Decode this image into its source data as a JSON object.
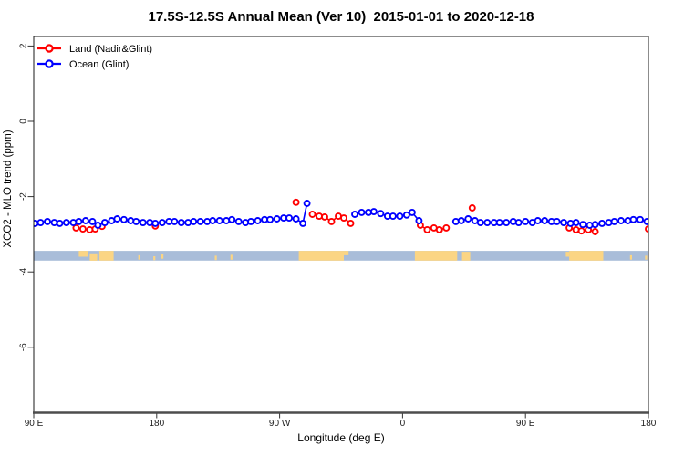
{
  "title": "17.5S-12.5S Annual Mean (Ver 10)  2015-01-01 to 2020-12-18",
  "legend": {
    "items": [
      {
        "label": "Land (Nadir&Glint)",
        "color": "#FF0000",
        "marker": "open-circle-line"
      },
      {
        "label": "Ocean (Glint)",
        "color": "#0000FF",
        "marker": "open-circle-line"
      }
    ]
  },
  "chart_data": {
    "type": "line",
    "title": "17.5S-12.5S Annual Mean (Ver 10)  2015-01-01 to 2020-12-18",
    "xlabel": "Longitude (deg E)",
    "ylabel": "XCO2 - MLO trend (ppm)",
    "x_axis": {
      "range_plot_deg": [
        90,
        540
      ],
      "note": "longitude axis wraps: 90E to 180 to 90W to 0 to 90E to 180",
      "ticks": [
        {
          "value": 90,
          "label": "90 E"
        },
        {
          "value": 180,
          "label": "180"
        },
        {
          "value": 270,
          "label": "90 W"
        },
        {
          "value": 360,
          "label": "0"
        },
        {
          "value": 450,
          "label": "90 E"
        },
        {
          "value": 540,
          "label": "180"
        }
      ]
    },
    "y_axis": {
      "range": [
        -7.7,
        2.3
      ],
      "grid": false,
      "ticks": [
        {
          "value": 2,
          "label": "2"
        },
        {
          "value": 0,
          "label": "0"
        },
        {
          "value": -2,
          "label": "-2"
        },
        {
          "value": -4,
          "label": "-4"
        },
        {
          "value": -6,
          "label": "-6"
        }
      ]
    },
    "line_gap_max_deg": 8,
    "series": [
      {
        "key": "land",
        "name": "Land (Nadir&Glint)",
        "color": "#FF0000",
        "marker": "open-circle",
        "points": [
          [
            121,
            -2.83
          ],
          [
            126,
            -2.86
          ],
          [
            131,
            -2.88
          ],
          [
            135,
            -2.86
          ],
          [
            140,
            -2.79
          ],
          [
            179,
            -2.78
          ],
          [
            282,
            -2.15
          ],
          [
            294,
            -2.47
          ],
          [
            299,
            -2.52
          ],
          [
            303,
            -2.54
          ],
          [
            308,
            -2.66
          ],
          [
            313,
            -2.52
          ],
          [
            317,
            -2.57
          ],
          [
            322,
            -2.71
          ],
          [
            373,
            -2.76
          ],
          [
            378,
            -2.88
          ],
          [
            383,
            -2.83
          ],
          [
            387,
            -2.88
          ],
          [
            392,
            -2.83
          ],
          [
            411,
            -2.3
          ],
          [
            482,
            -2.83
          ],
          [
            487,
            -2.88
          ],
          [
            491,
            -2.91
          ],
          [
            496,
            -2.88
          ],
          [
            501,
            -2.93
          ],
          [
            540,
            -2.86
          ]
        ]
      },
      {
        "key": "ocean",
        "name": "Ocean (Glint)",
        "color": "#0000FF",
        "marker": "open-circle",
        "points": [
          [
            91,
            -2.71
          ],
          [
            95,
            -2.69
          ],
          [
            100,
            -2.66
          ],
          [
            105,
            -2.69
          ],
          [
            109,
            -2.71
          ],
          [
            114,
            -2.69
          ],
          [
            119,
            -2.69
          ],
          [
            123,
            -2.66
          ],
          [
            128,
            -2.64
          ],
          [
            133,
            -2.66
          ],
          [
            137,
            -2.76
          ],
          [
            142,
            -2.69
          ],
          [
            147,
            -2.64
          ],
          [
            151,
            -2.59
          ],
          [
            156,
            -2.61
          ],
          [
            161,
            -2.64
          ],
          [
            165,
            -2.66
          ],
          [
            170,
            -2.69
          ],
          [
            175,
            -2.69
          ],
          [
            179,
            -2.71
          ],
          [
            184,
            -2.69
          ],
          [
            189,
            -2.66
          ],
          [
            193,
            -2.66
          ],
          [
            198,
            -2.69
          ],
          [
            203,
            -2.69
          ],
          [
            207,
            -2.66
          ],
          [
            212,
            -2.66
          ],
          [
            217,
            -2.66
          ],
          [
            221,
            -2.64
          ],
          [
            226,
            -2.64
          ],
          [
            231,
            -2.64
          ],
          [
            235,
            -2.61
          ],
          [
            240,
            -2.66
          ],
          [
            245,
            -2.69
          ],
          [
            249,
            -2.66
          ],
          [
            254,
            -2.64
          ],
          [
            259,
            -2.61
          ],
          [
            263,
            -2.61
          ],
          [
            268,
            -2.59
          ],
          [
            273,
            -2.57
          ],
          [
            277,
            -2.57
          ],
          [
            282,
            -2.59
          ],
          [
            287,
            -2.71
          ],
          [
            290,
            -2.18
          ],
          [
            325,
            -2.47
          ],
          [
            330,
            -2.42
          ],
          [
            335,
            -2.42
          ],
          [
            339,
            -2.4
          ],
          [
            344,
            -2.45
          ],
          [
            349,
            -2.52
          ],
          [
            353,
            -2.52
          ],
          [
            358,
            -2.52
          ],
          [
            363,
            -2.49
          ],
          [
            367,
            -2.42
          ],
          [
            372,
            -2.64
          ],
          [
            399,
            -2.66
          ],
          [
            403,
            -2.64
          ],
          [
            408,
            -2.59
          ],
          [
            413,
            -2.64
          ],
          [
            417,
            -2.69
          ],
          [
            422,
            -2.69
          ],
          [
            427,
            -2.69
          ],
          [
            431,
            -2.69
          ],
          [
            436,
            -2.69
          ],
          [
            441,
            -2.66
          ],
          [
            445,
            -2.69
          ],
          [
            450,
            -2.66
          ],
          [
            455,
            -2.69
          ],
          [
            459,
            -2.64
          ],
          [
            464,
            -2.64
          ],
          [
            469,
            -2.66
          ],
          [
            473,
            -2.66
          ],
          [
            478,
            -2.69
          ],
          [
            483,
            -2.71
          ],
          [
            487,
            -2.69
          ],
          [
            492,
            -2.74
          ],
          [
            497,
            -2.76
          ],
          [
            501,
            -2.74
          ],
          [
            506,
            -2.71
          ],
          [
            511,
            -2.69
          ],
          [
            515,
            -2.66
          ],
          [
            520,
            -2.64
          ],
          [
            525,
            -2.64
          ],
          [
            529,
            -2.61
          ],
          [
            534,
            -2.61
          ],
          [
            539,
            -2.66
          ]
        ]
      }
    ],
    "map_strip": {
      "ocean_color": "#A9BDD9",
      "land_color": "#FBD584",
      "ppm_top": -3.44,
      "ppm_bottom": -3.7,
      "land_patches": [
        {
          "name": "australia",
          "x0": 123,
          "x1": 130,
          "top": 0,
          "h": 0.6
        },
        {
          "name": "australia",
          "x0": 131,
          "x1": 136.5,
          "top": 0.25,
          "h": 0.75
        },
        {
          "name": "australia",
          "x0": 138,
          "x1": 148.5,
          "top": 0,
          "h": 1
        },
        {
          "name": "vanuatu",
          "x0": 166.5,
          "x1": 168,
          "top": 0.45,
          "h": 0.45
        },
        {
          "name": "fiji",
          "x0": 177.5,
          "x1": 179,
          "top": 0.55,
          "h": 0.4
        },
        {
          "name": "samoa",
          "x0": 183.5,
          "x1": 185,
          "top": 0.3,
          "h": 0.5
        },
        {
          "name": "french-polynesia",
          "x0": 222.5,
          "x1": 224,
          "top": 0.5,
          "h": 0.45
        },
        {
          "name": "french-polynesia",
          "x0": 234,
          "x1": 235.5,
          "top": 0.4,
          "h": 0.5
        },
        {
          "name": "south-america",
          "x0": 284,
          "x1": 317,
          "top": 0,
          "h": 1
        },
        {
          "name": "south-america",
          "x0": 317,
          "x1": 320.5,
          "top": 0,
          "h": 0.45
        },
        {
          "name": "africa",
          "x0": 369,
          "x1": 400,
          "top": 0,
          "h": 1
        },
        {
          "name": "madagascar",
          "x0": 403.5,
          "x1": 409.5,
          "top": 0.1,
          "h": 0.9
        },
        {
          "name": "australia",
          "x0": 479.5,
          "x1": 482,
          "top": 0.1,
          "h": 0.5
        },
        {
          "name": "australia",
          "x0": 482,
          "x1": 507,
          "top": 0,
          "h": 1
        },
        {
          "name": "vanuatu",
          "x0": 526.5,
          "x1": 528,
          "top": 0.45,
          "h": 0.45
        },
        {
          "name": "fiji",
          "x0": 537.5,
          "x1": 539,
          "top": 0.5,
          "h": 0.4
        }
      ]
    }
  },
  "colors": {
    "land_series": "#FF0000",
    "ocean_series": "#0000FF",
    "axis_line": "#4D4D4D",
    "box_line": "#1A1A1A",
    "text": "#000000"
  }
}
